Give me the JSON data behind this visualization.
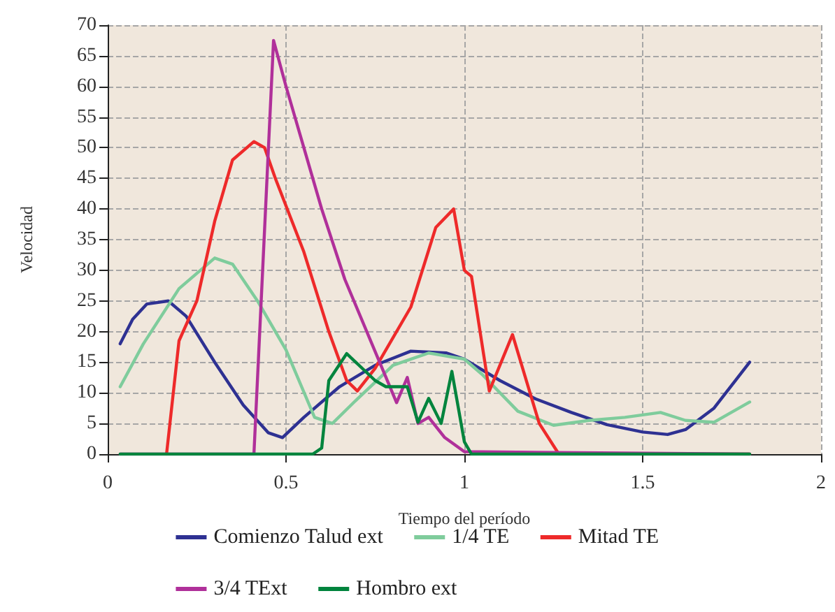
{
  "chart_data": {
    "type": "line",
    "xlabel": "Tiempo del período",
    "ylabel": "Velocidad",
    "xlim": [
      0,
      2
    ],
    "xticks": [
      0,
      0.5,
      1,
      1.5,
      2
    ],
    "ylim": [
      0,
      70
    ],
    "yticks": [
      0,
      5,
      10,
      15,
      20,
      25,
      30,
      35,
      40,
      45,
      50,
      55,
      60,
      65,
      70
    ],
    "grid": true,
    "legend": "bottom",
    "marker": "none",
    "line_style": "solid",
    "series": [
      {
        "name": "Comienzo Talud ext",
        "color": "#2e3192",
        "x": [
          0.035,
          0.07,
          0.11,
          0.17,
          0.22,
          0.3,
          0.38,
          0.45,
          0.49,
          0.55,
          0.65,
          0.75,
          0.85,
          0.95,
          1.0,
          1.1,
          1.2,
          1.3,
          1.4,
          1.5,
          1.57,
          1.62,
          1.7,
          1.8
        ],
        "values": [
          18,
          22,
          24.5,
          25,
          22.5,
          15,
          8,
          3.5,
          2.7,
          6,
          11,
          14.5,
          16.8,
          16.5,
          15.5,
          12,
          9,
          6.8,
          4.8,
          3.6,
          3.2,
          4,
          7.5,
          15
        ]
      },
      {
        "name": "1/4 TE",
        "color": "#7fcc9c",
        "x": [
          0.035,
          0.1,
          0.2,
          0.3,
          0.35,
          0.42,
          0.5,
          0.58,
          0.63,
          0.7,
          0.8,
          0.9,
          1.0,
          1.05,
          1.15,
          1.25,
          1.35,
          1.45,
          1.55,
          1.62,
          1.7,
          1.8
        ],
        "values": [
          11,
          18,
          27,
          32,
          31,
          25,
          17,
          6,
          5,
          9,
          14.5,
          16.5,
          15.5,
          13,
          7,
          4.7,
          5.5,
          6,
          6.8,
          5.5,
          5.2,
          8.5
        ]
      },
      {
        "name": "Mitad TE",
        "color": "#ee2a2a",
        "x": [
          0.165,
          0.2,
          0.25,
          0.3,
          0.35,
          0.41,
          0.44,
          0.47,
          0.55,
          0.62,
          0.67,
          0.7,
          0.75,
          0.85,
          0.92,
          0.97,
          1.0,
          1.02,
          1.07,
          1.135,
          1.21,
          1.265,
          1.8
        ],
        "values": [
          0,
          18.5,
          25,
          38,
          48,
          51,
          50,
          45,
          33,
          20,
          12,
          10.3,
          14,
          24,
          37,
          40,
          30,
          29,
          10.3,
          19.5,
          5,
          0,
          0
        ]
      },
      {
        "name": "3/4 TExt",
        "color": "#b0309a",
        "x": [
          0.035,
          0.41,
          0.465,
          0.5,
          0.55,
          0.6,
          0.665,
          0.81,
          0.84,
          0.87,
          0.9,
          0.945,
          1.0,
          1.8
        ],
        "values": [
          0,
          0,
          67.5,
          60,
          50,
          40,
          28.5,
          8.4,
          12.5,
          5,
          6,
          2.7,
          0.4,
          0
        ]
      },
      {
        "name": "Hombro ext",
        "color": "#00843d",
        "x": [
          0.035,
          0.575,
          0.6,
          0.62,
          0.67,
          0.75,
          0.78,
          0.84,
          0.87,
          0.9,
          0.935,
          0.965,
          1.0,
          1.02,
          1.8
        ],
        "values": [
          0,
          0,
          1,
          12,
          16.4,
          12,
          11,
          11,
          5.2,
          9.1,
          5,
          13.5,
          2,
          0,
          0
        ]
      }
    ]
  }
}
